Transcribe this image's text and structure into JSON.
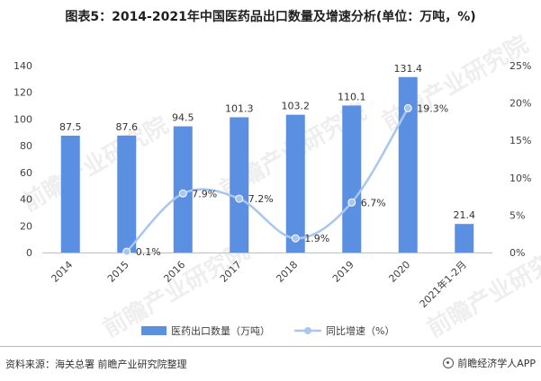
{
  "title": "图表5：2014-2021年中国医药品出口数量及增速分析(单位：万吨，%)",
  "watermark": "前瞻产业研究院",
  "colors": {
    "bar": "#5b8fe1",
    "line": "#a9c7ee",
    "marker": "#a9c7ee",
    "axis": "#bfbfbf",
    "text": "#404040"
  },
  "chart_data": {
    "type": "bar",
    "title": "图表5：2014-2021年中国医药品出口数量及增速分析(单位：万吨，%)",
    "categories": [
      "2014",
      "2015",
      "2016",
      "2017",
      "2018",
      "2019",
      "2020",
      "2021年1-2月"
    ],
    "series": [
      {
        "name": "医药出口数量（万吨）",
        "type": "bar",
        "axis": "left",
        "values": [
          87.5,
          87.6,
          94.5,
          101.3,
          103.2,
          110.1,
          131.4,
          21.4
        ],
        "labels": [
          "87.5",
          "87.6",
          "94.5",
          "101.3",
          "103.2",
          "110.1",
          "131.4",
          "21.4"
        ]
      },
      {
        "name": "同比增速（%）",
        "type": "line",
        "axis": "right",
        "values": [
          null,
          0.1,
          7.9,
          7.2,
          1.9,
          6.7,
          19.3,
          null
        ],
        "labels": [
          "",
          "0.1%",
          "7.9%",
          "7.2%",
          "1.9%",
          "6.7%",
          "19.3%",
          ""
        ]
      }
    ],
    "y_left": {
      "min": 0,
      "max": 140,
      "ticks": [
        "0",
        "20",
        "40",
        "60",
        "80",
        "100",
        "120",
        "140"
      ]
    },
    "y_right": {
      "min": 0,
      "max": 25,
      "ticks": [
        "0%",
        "5%",
        "10%",
        "15%",
        "20%",
        "25%"
      ]
    },
    "legend": {
      "position": "bottom",
      "items": [
        "医药出口数量（万吨）",
        "同比增速（%）"
      ]
    },
    "grid": false
  },
  "footer": {
    "source": "资料来源：海关总署 前瞻产业研究院整理",
    "brand": "前瞻经济学人APP"
  }
}
